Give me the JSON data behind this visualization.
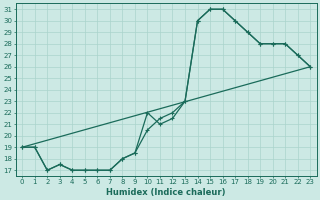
{
  "xlabel": "Humidex (Indice chaleur)",
  "bg_color": "#cce9e4",
  "grid_color": "#aad4cc",
  "line_color": "#1a6b5a",
  "xlim": [
    -0.5,
    23.5
  ],
  "ylim": [
    16.5,
    31.5
  ],
  "xticks": [
    0,
    1,
    2,
    3,
    4,
    5,
    6,
    7,
    8,
    9,
    10,
    11,
    12,
    13,
    14,
    15,
    16,
    17,
    18,
    19,
    20,
    21,
    22,
    23
  ],
  "yticks": [
    17,
    18,
    19,
    20,
    21,
    22,
    23,
    24,
    25,
    26,
    27,
    28,
    29,
    30,
    31
  ],
  "curve1_x": [
    0,
    1,
    2,
    3,
    4,
    5,
    6,
    7,
    8,
    9,
    10,
    11,
    12,
    13,
    14,
    15,
    16,
    17,
    18,
    19,
    20,
    21,
    22,
    23
  ],
  "curve1_y": [
    19,
    19,
    17,
    17.5,
    17,
    17,
    17,
    17,
    18,
    18.5,
    22,
    21,
    21.5,
    23,
    30,
    31,
    31,
    30,
    29,
    28,
    28,
    28,
    27,
    26
  ],
  "curve2_x": [
    0,
    1,
    2,
    3,
    4,
    5,
    6,
    7,
    8,
    9,
    10,
    11,
    12,
    13,
    14,
    15,
    16,
    17,
    18,
    19,
    20,
    21,
    22,
    23
  ],
  "curve2_y": [
    19,
    19,
    17,
    17.5,
    17,
    17,
    17,
    17,
    18,
    18.5,
    20.5,
    21.5,
    22,
    23,
    30,
    31,
    31,
    30,
    29,
    28,
    28,
    28,
    27,
    26
  ],
  "curve3_x": [
    0,
    23
  ],
  "curve3_y": [
    19,
    26
  ]
}
